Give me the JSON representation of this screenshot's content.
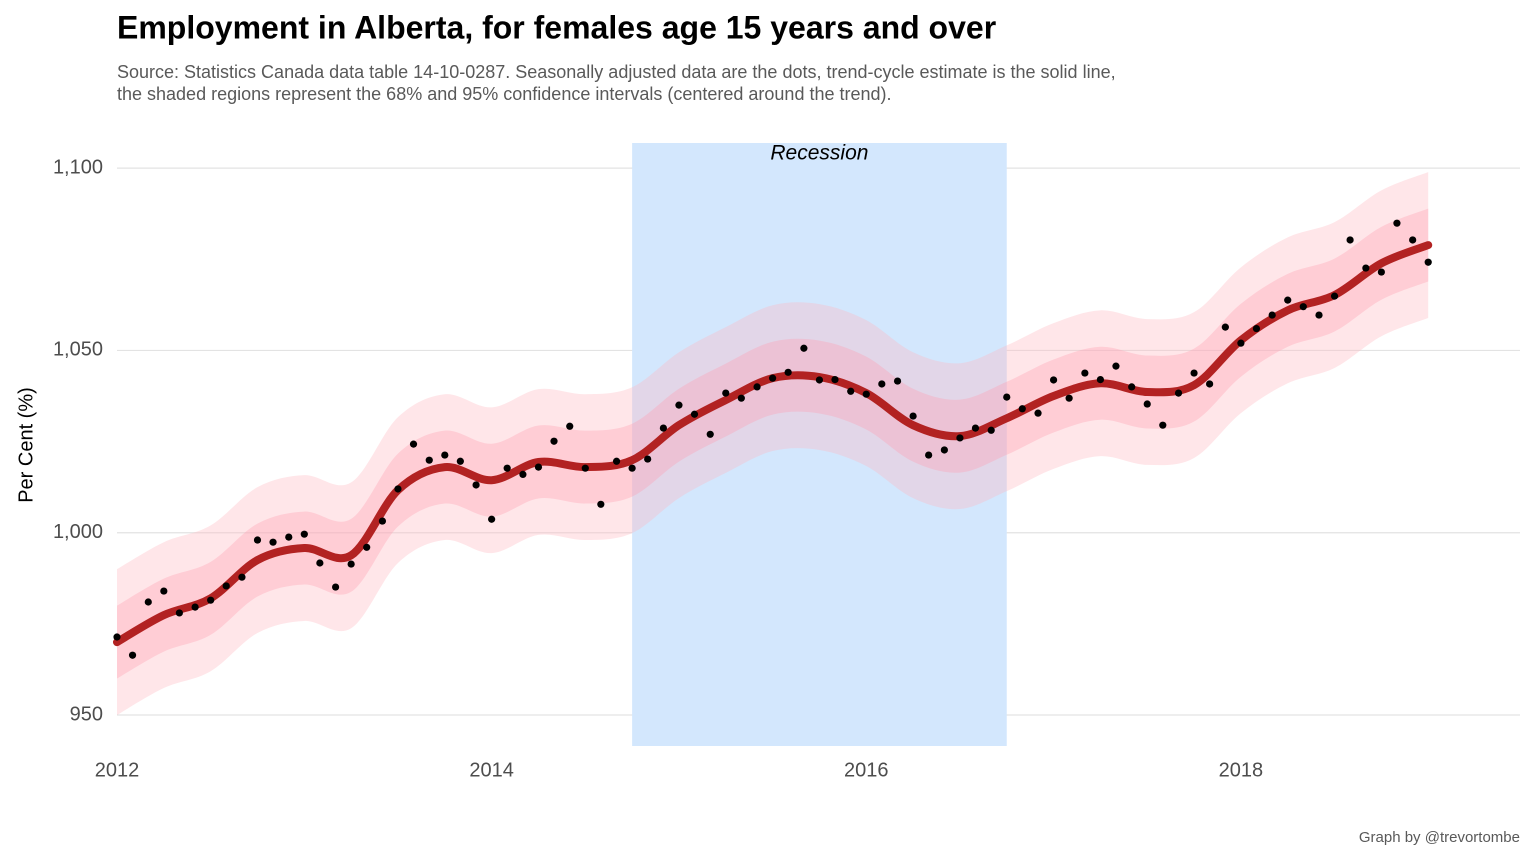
{
  "chart_data": {
    "type": "line",
    "title": "Employment in Alberta, for females age 15 years and over",
    "subtitle": [
      "Source: Statistics Canada data table 14-10-0287. Seasonally adjusted data are the dots, trend-cycle estimate is the solid line,",
      "the shaded regions represent the 68% and 95% confidence intervals (centered around the trend)."
    ],
    "y_label": "Per Cent (%)",
    "caption": "Graph by @trevortombe",
    "xlim": [
      2012,
      2019.49
    ],
    "ylim": [
      941.5,
      1106.9
    ],
    "xticks": [
      2012,
      2014,
      2016,
      2018
    ],
    "yticks": [
      950,
      {
        "value": 1000,
        "label": "1,000"
      },
      {
        "value": 1050,
        "label": "1,050"
      },
      {
        "value": 1100,
        "label": "1,100"
      }
    ],
    "grid": true,
    "recession": {
      "label": "Recession",
      "xmin": 2014.75,
      "xmax": 2016.75,
      "color": "#d3e7fd"
    },
    "points": {
      "color": "#000000",
      "x": [
        2012,
        2012.083,
        2012.167,
        2012.25,
        2012.333,
        2012.417,
        2012.5,
        2012.583,
        2012.667,
        2012.75,
        2012.833,
        2012.917,
        2013,
        2013.083,
        2013.167,
        2013.25,
        2013.333,
        2013.417,
        2013.5,
        2013.583,
        2013.667,
        2013.75,
        2013.833,
        2013.917,
        2014,
        2014.083,
        2014.167,
        2014.25,
        2014.333,
        2014.417,
        2014.5,
        2014.583,
        2014.667,
        2014.75,
        2014.833,
        2014.917,
        2015,
        2015.083,
        2015.167,
        2015.25,
        2015.333,
        2015.417,
        2015.5,
        2015.583,
        2015.667,
        2015.75,
        2015.833,
        2015.917,
        2016,
        2016.083,
        2016.167,
        2016.25,
        2016.333,
        2016.417,
        2016.5,
        2016.583,
        2016.667,
        2016.75,
        2016.833,
        2016.917,
        2017,
        2017.083,
        2017.167,
        2017.25,
        2017.333,
        2017.417,
        2017.5,
        2017.583,
        2017.667,
        2017.75,
        2017.833,
        2017.917,
        2018,
        2018.083,
        2018.167,
        2018.25,
        2018.333,
        2018.417,
        2018.5,
        2018.583,
        2018.667,
        2018.75,
        2018.833,
        2018.917,
        2019
      ],
      "values": [
        971.4,
        966.4,
        981,
        984,
        978,
        979.6,
        981.5,
        985.4,
        987.8,
        998,
        997.4,
        998.8,
        999.6,
        991.7,
        985.1,
        991.4,
        996,
        1003.2,
        1012,
        1024.3,
        1019.9,
        1021.3,
        1019.6,
        1013.1,
        1003.7,
        1017.7,
        1016,
        1018,
        1025.1,
        1029.2,
        1017.7,
        1007.8,
        1019.6,
        1017.7,
        1020.2,
        1028.7,
        1035,
        1032.5,
        1027,
        1038.3,
        1036.9,
        1040,
        1042.4,
        1044,
        1050.6,
        1041.9,
        1042,
        1038.8,
        1038,
        1040.8,
        1041.6,
        1032,
        1021.3,
        1022.7,
        1026,
        1028.7,
        1028.1,
        1037.2,
        1034,
        1032.8,
        1041.9,
        1036.9,
        1043.8,
        1042,
        1045.7,
        1040,
        1035.3,
        1029.5,
        1038.3,
        1043.8,
        1040.8,
        1056.4,
        1052,
        1056,
        1059.7,
        1063.8,
        1062,
        1059.7,
        1064.9,
        1080.3,
        1072.6,
        1071.5,
        1084.9,
        1080.3,
        1074.2
      ]
    },
    "trend": {
      "color": "#b22222",
      "x": [
        2012,
        2012.25,
        2012.5,
        2012.75,
        2013,
        2013.25,
        2013.5,
        2013.75,
        2014,
        2014.25,
        2014.5,
        2014.75,
        2015,
        2015.25,
        2015.5,
        2015.75,
        2016,
        2016.25,
        2016.5,
        2016.75,
        2017,
        2017.25,
        2017.5,
        2017.75,
        2018,
        2018.25,
        2018.5,
        2018.75,
        2019
      ],
      "values": [
        970,
        977.4,
        982,
        992.5,
        995.8,
        993.8,
        1011.7,
        1018,
        1014.4,
        1019.4,
        1018,
        1019.9,
        1029.5,
        1036.4,
        1042.4,
        1042.7,
        1038.3,
        1029.5,
        1026.5,
        1031.4,
        1037.5,
        1041,
        1038.6,
        1040.5,
        1052.8,
        1061,
        1065.2,
        1073.9,
        1078.9
      ],
      "ci95": {
        "color": "#ffb6c1",
        "lower": [
          950,
          957.4,
          962,
          972.5,
          975.8,
          973.8,
          991.7,
          998,
          994.4,
          999.4,
          998,
          999.9,
          1009.5,
          1016.4,
          1022.4,
          1022.7,
          1018.3,
          1009.5,
          1006.5,
          1011.4,
          1017.5,
          1021,
          1018.6,
          1020.5,
          1032.8,
          1041,
          1045.2,
          1053.9,
          1058.9
        ],
        "upper": [
          990,
          997.4,
          1002,
          1012.5,
          1015.8,
          1013.8,
          1031.7,
          1038,
          1034.4,
          1039.4,
          1038,
          1039.9,
          1049.5,
          1056.4,
          1062.4,
          1062.7,
          1058.3,
          1049.5,
          1046.5,
          1051.4,
          1057.5,
          1061,
          1058.6,
          1060.5,
          1072.8,
          1081,
          1085.2,
          1093.9,
          1098.9
        ]
      },
      "ci68": {
        "color": "#ff9fb2",
        "lower": [
          960,
          967.4,
          972,
          982.5,
          985.8,
          983.8,
          1001.7,
          1008,
          1004.4,
          1009.4,
          1008,
          1009.9,
          1019.5,
          1026.4,
          1032.4,
          1032.7,
          1028.3,
          1019.5,
          1016.5,
          1021.4,
          1027.5,
          1031,
          1028.6,
          1030.5,
          1042.8,
          1051,
          1055.2,
          1063.9,
          1068.9
        ],
        "upper": [
          980,
          987.4,
          992,
          1002.5,
          1005.8,
          1003.8,
          1021.7,
          1028,
          1024.4,
          1029.4,
          1028,
          1029.9,
          1039.5,
          1046.4,
          1052.4,
          1052.7,
          1048.3,
          1039.5,
          1036.5,
          1041.4,
          1047.5,
          1051,
          1048.6,
          1050.5,
          1062.8,
          1071,
          1075.2,
          1083.9,
          1088.9
        ]
      }
    }
  }
}
